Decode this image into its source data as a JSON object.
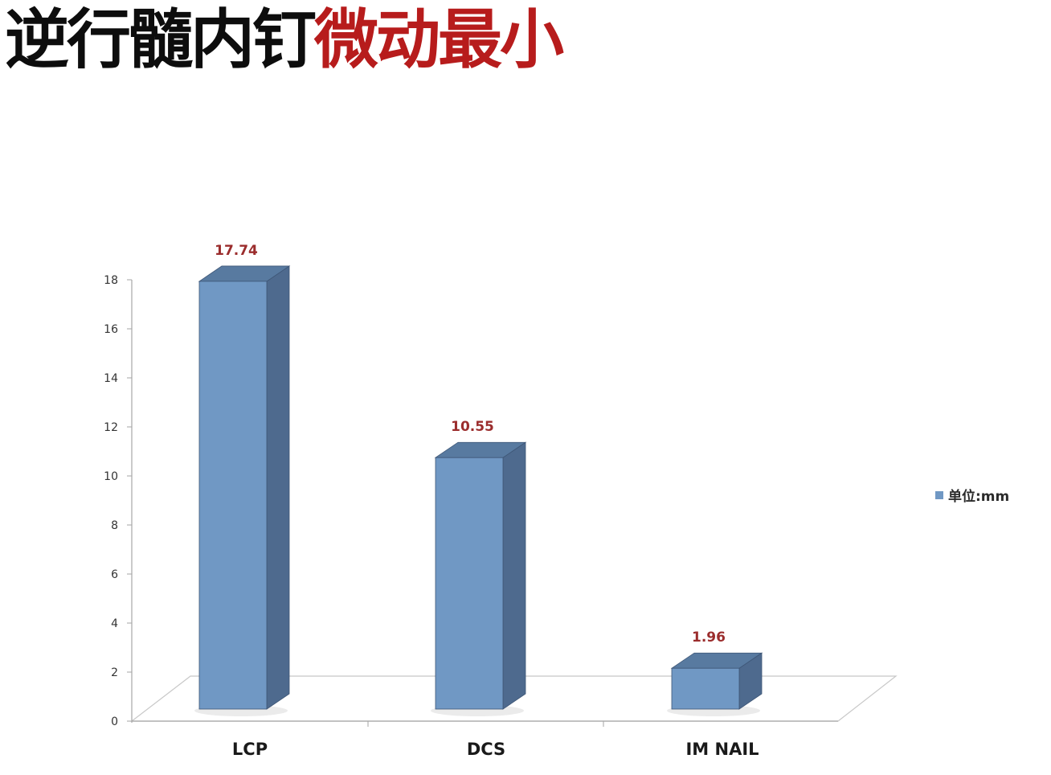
{
  "slide": {
    "title_part1": "逆行髓内钉",
    "title_part2": "微动最小",
    "title_color": "#0d0d0d",
    "highlight_color": "#b71c1c"
  },
  "chart_data": {
    "type": "bar",
    "style": "3d-column",
    "categories": [
      "LCP",
      "DCS",
      "IM NAIL"
    ],
    "series": [
      {
        "name": "单位:mm",
        "values": [
          17.74,
          10.55,
          1.96
        ],
        "color": "#7098c4"
      }
    ],
    "data_labels": [
      "17.74",
      "10.55",
      "1.96"
    ],
    "ylim": [
      0,
      18
    ],
    "yticks": [
      0,
      2,
      4,
      6,
      8,
      10,
      12,
      14,
      16,
      18
    ],
    "grid": false,
    "legend_position": "right",
    "title": "",
    "xlabel": "",
    "ylabel": ""
  }
}
